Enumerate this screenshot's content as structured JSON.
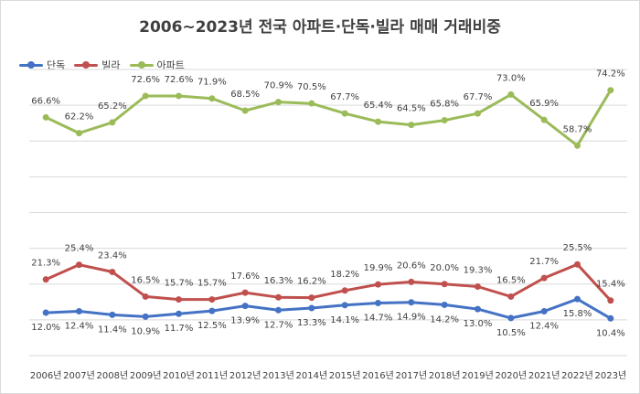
{
  "chart_data": {
    "type": "line",
    "title": "2006~2023년 전국 아파트·단독·빌라 매매 거래비중",
    "categories": [
      "2006년",
      "2007년",
      "2008년",
      "2009년",
      "2010년",
      "2011년",
      "2012년",
      "2013년",
      "2014년",
      "2015년",
      "2016년",
      "2017년",
      "2018년",
      "2019년",
      "2020년",
      "2021년",
      "2022년",
      "2023년"
    ],
    "series": [
      {
        "name": "단독",
        "color": "#4472c4",
        "values": [
          12.0,
          12.4,
          11.4,
          10.9,
          11.7,
          12.5,
          13.9,
          12.7,
          13.3,
          14.1,
          14.7,
          14.9,
          14.2,
          13.0,
          10.5,
          12.4,
          15.8,
          10.4
        ]
      },
      {
        "name": "빌라",
        "color": "#c0504d",
        "values": [
          21.3,
          25.4,
          23.4,
          16.5,
          15.7,
          15.7,
          17.6,
          16.3,
          16.2,
          18.2,
          19.9,
          20.6,
          20.0,
          19.3,
          16.5,
          21.7,
          25.5,
          15.4
        ]
      },
      {
        "name": "아파트",
        "color": "#9bbb59",
        "values": [
          66.6,
          62.2,
          65.2,
          72.6,
          72.6,
          71.9,
          68.5,
          70.9,
          70.5,
          67.7,
          65.4,
          64.5,
          65.8,
          67.7,
          73.0,
          65.9,
          58.7,
          74.2
        ]
      }
    ],
    "value_suffix": "%",
    "ylim": [
      0,
      80
    ],
    "grid": true,
    "legend_position": "top-left"
  }
}
